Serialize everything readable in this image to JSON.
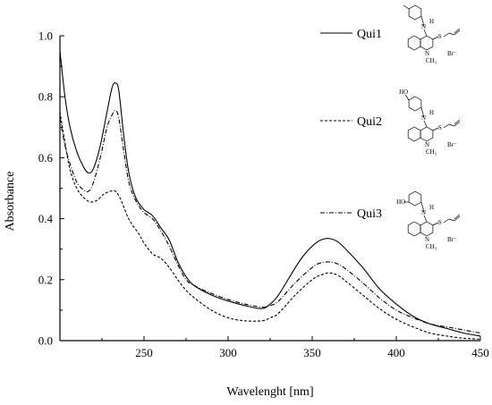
{
  "chart_data": {
    "type": "line",
    "title": "",
    "xlabel": "Wavelenght [nm]",
    "ylabel": "Absorbance",
    "xlim": [
      200,
      450
    ],
    "ylim": [
      0.0,
      1.0
    ],
    "x_ticks": [
      250,
      300,
      350,
      400,
      450
    ],
    "x_tick_labels": [
      "250",
      "300",
      "350",
      "400",
      "450"
    ],
    "y_ticks": [
      0.0,
      0.2,
      0.4,
      0.6,
      0.8,
      1.0
    ],
    "y_tick_labels": [
      "0.0",
      "0.2",
      "0.4",
      "0.6",
      "0.8",
      "1.0"
    ],
    "grid": false,
    "legend_position": "right",
    "series": [
      {
        "name": "Qui1",
        "line_style": "solid",
        "color": "#000000",
        "points": [
          [
            200,
            0.95
          ],
          [
            203,
            0.8
          ],
          [
            206,
            0.7
          ],
          [
            210,
            0.62
          ],
          [
            214,
            0.57
          ],
          [
            217,
            0.55
          ],
          [
            220,
            0.565
          ],
          [
            224,
            0.64
          ],
          [
            228,
            0.75
          ],
          [
            231,
            0.83
          ],
          [
            233,
            0.845
          ],
          [
            235,
            0.82
          ],
          [
            238,
            0.67
          ],
          [
            241,
            0.55
          ],
          [
            245,
            0.47
          ],
          [
            250,
            0.43
          ],
          [
            255,
            0.41
          ],
          [
            260,
            0.37
          ],
          [
            265,
            0.33
          ],
          [
            270,
            0.26
          ],
          [
            275,
            0.21
          ],
          [
            280,
            0.18
          ],
          [
            290,
            0.15
          ],
          [
            300,
            0.13
          ],
          [
            310,
            0.115
          ],
          [
            320,
            0.105
          ],
          [
            325,
            0.12
          ],
          [
            330,
            0.15
          ],
          [
            340,
            0.24
          ],
          [
            345,
            0.28
          ],
          [
            350,
            0.31
          ],
          [
            355,
            0.33
          ],
          [
            360,
            0.335
          ],
          [
            365,
            0.325
          ],
          [
            370,
            0.3
          ],
          [
            380,
            0.24
          ],
          [
            390,
            0.17
          ],
          [
            400,
            0.12
          ],
          [
            410,
            0.08
          ],
          [
            420,
            0.055
          ],
          [
            430,
            0.04
          ],
          [
            440,
            0.025
          ],
          [
            450,
            0.015
          ]
        ]
      },
      {
        "name": "Qui2",
        "line_style": "dashed",
        "color": "#000000",
        "points": [
          [
            200,
            0.75
          ],
          [
            203,
            0.65
          ],
          [
            206,
            0.56
          ],
          [
            210,
            0.5
          ],
          [
            214,
            0.47
          ],
          [
            218,
            0.455
          ],
          [
            222,
            0.46
          ],
          [
            226,
            0.48
          ],
          [
            230,
            0.49
          ],
          [
            233,
            0.49
          ],
          [
            236,
            0.465
          ],
          [
            240,
            0.41
          ],
          [
            243,
            0.38
          ],
          [
            247,
            0.35
          ],
          [
            250,
            0.32
          ],
          [
            255,
            0.285
          ],
          [
            260,
            0.27
          ],
          [
            265,
            0.24
          ],
          [
            270,
            0.2
          ],
          [
            275,
            0.165
          ],
          [
            280,
            0.14
          ],
          [
            290,
            0.1
          ],
          [
            300,
            0.075
          ],
          [
            310,
            0.065
          ],
          [
            320,
            0.065
          ],
          [
            325,
            0.075
          ],
          [
            330,
            0.09
          ],
          [
            340,
            0.15
          ],
          [
            350,
            0.2
          ],
          [
            355,
            0.215
          ],
          [
            360,
            0.222
          ],
          [
            365,
            0.215
          ],
          [
            370,
            0.195
          ],
          [
            380,
            0.15
          ],
          [
            390,
            0.105
          ],
          [
            400,
            0.07
          ],
          [
            410,
            0.045
          ],
          [
            420,
            0.025
          ],
          [
            430,
            0.015
          ],
          [
            440,
            0.008
          ],
          [
            450,
            0.005
          ]
        ]
      },
      {
        "name": "Qui3",
        "line_style": "dash-dot",
        "color": "#000000",
        "points": [
          [
            200,
            0.73
          ],
          [
            203,
            0.64
          ],
          [
            206,
            0.58
          ],
          [
            210,
            0.52
          ],
          [
            214,
            0.495
          ],
          [
            217,
            0.49
          ],
          [
            220,
            0.52
          ],
          [
            224,
            0.6
          ],
          [
            228,
            0.7
          ],
          [
            231,
            0.74
          ],
          [
            233,
            0.755
          ],
          [
            235,
            0.73
          ],
          [
            238,
            0.62
          ],
          [
            241,
            0.52
          ],
          [
            245,
            0.46
          ],
          [
            250,
            0.42
          ],
          [
            255,
            0.4
          ],
          [
            260,
            0.36
          ],
          [
            265,
            0.31
          ],
          [
            270,
            0.25
          ],
          [
            275,
            0.2
          ],
          [
            280,
            0.18
          ],
          [
            290,
            0.155
          ],
          [
            300,
            0.135
          ],
          [
            310,
            0.12
          ],
          [
            320,
            0.11
          ],
          [
            325,
            0.115
          ],
          [
            330,
            0.13
          ],
          [
            340,
            0.19
          ],
          [
            350,
            0.24
          ],
          [
            355,
            0.255
          ],
          [
            360,
            0.258
          ],
          [
            365,
            0.252
          ],
          [
            370,
            0.235
          ],
          [
            380,
            0.19
          ],
          [
            390,
            0.14
          ],
          [
            400,
            0.1
          ],
          [
            410,
            0.075
          ],
          [
            420,
            0.055
          ],
          [
            430,
            0.045
          ],
          [
            440,
            0.035
          ],
          [
            450,
            0.025
          ]
        ]
      }
    ],
    "structure_labels": {
      "nh": "H",
      "n_ring": "N",
      "n_methyl": "CH₃",
      "s": "S",
      "br": "Br⁻",
      "oh": "HO"
    }
  }
}
